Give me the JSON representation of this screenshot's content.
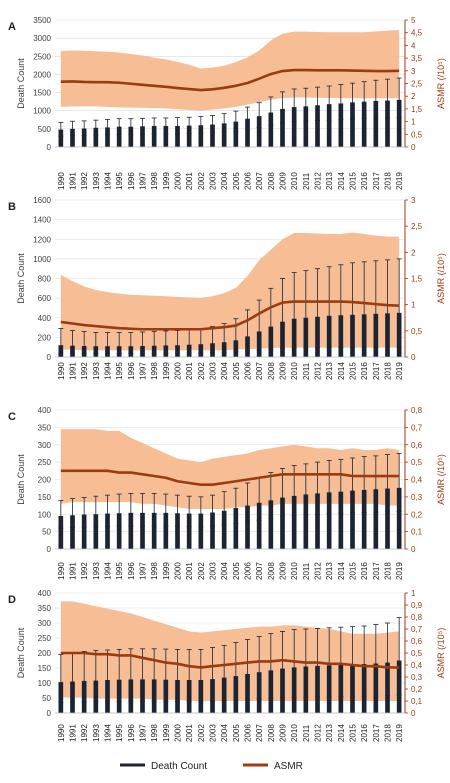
{
  "legend": {
    "death_count": "Death Count",
    "asmr": "ASMR",
    "death_color": "#1c2433",
    "asmr_color": "#9a3b12"
  },
  "colors": {
    "band": "#f6b88c",
    "bar": "#1c2433",
    "asmr_line": "#9a3b12",
    "right_axis": "#9a3b12",
    "grid": "#d9d9d9"
  },
  "chart_data": [
    {
      "panel_label": "A",
      "type": "bar",
      "x": [
        "1990",
        "1991",
        "1992",
        "1993",
        "1994",
        "1995",
        "1996",
        "1997",
        "1998",
        "1999",
        "2000",
        "2001",
        "2002",
        "2003",
        "2004",
        "2005",
        "2006",
        "2007",
        "2008",
        "2009",
        "2010",
        "2011",
        "2012",
        "2013",
        "2014",
        "2015",
        "2016",
        "2017",
        "2018",
        "2019"
      ],
      "ylabel": "Death Count",
      "ylabel_right": "ASMR (/10⁵)",
      "ylim": [
        0,
        3500
      ],
      "yticks": [
        "0",
        "500",
        "1000",
        "1500",
        "2000",
        "2500",
        "3000",
        "3500"
      ],
      "ylim_right": [
        0,
        5
      ],
      "yticks_right": [
        "0",
        "0,5",
        "1",
        "1,5",
        "2",
        "2,5",
        "3",
        "3,5",
        "4",
        "4,5",
        "5"
      ],
      "death_count": [
        480,
        500,
        510,
        530,
        540,
        560,
        560,
        570,
        580,
        580,
        580,
        590,
        600,
        620,
        650,
        700,
        780,
        850,
        950,
        1050,
        1100,
        1120,
        1150,
        1180,
        1200,
        1230,
        1250,
        1270,
        1280,
        1300
      ],
      "death_upper": [
        680,
        710,
        720,
        740,
        760,
        780,
        780,
        790,
        800,
        800,
        810,
        820,
        840,
        870,
        920,
        990,
        1100,
        1220,
        1380,
        1520,
        1600,
        1620,
        1650,
        1680,
        1720,
        1760,
        1800,
        1840,
        1870,
        1900
      ],
      "death_lower": [
        300,
        310,
        320,
        330,
        340,
        350,
        350,
        360,
        360,
        360,
        370,
        370,
        380,
        390,
        410,
        440,
        490,
        540,
        600,
        660,
        700,
        710,
        730,
        740,
        750,
        770,
        780,
        790,
        800,
        810
      ],
      "asmr": [
        2.57,
        2.58,
        2.56,
        2.55,
        2.55,
        2.53,
        2.49,
        2.45,
        2.41,
        2.37,
        2.32,
        2.28,
        2.24,
        2.27,
        2.33,
        2.41,
        2.52,
        2.69,
        2.87,
        2.99,
        3.03,
        3.03,
        3.02,
        3.02,
        3.02,
        3.01,
        3.0,
        2.99,
        2.99,
        3.0
      ],
      "asmr_upper": [
        3.78,
        3.8,
        3.79,
        3.77,
        3.75,
        3.72,
        3.66,
        3.6,
        3.52,
        3.45,
        3.35,
        3.24,
        3.09,
        3.13,
        3.2,
        3.34,
        3.53,
        3.8,
        4.2,
        4.46,
        4.54,
        4.54,
        4.53,
        4.52,
        4.52,
        4.52,
        4.52,
        4.55,
        4.58,
        4.6
      ],
      "asmr_lower": [
        1.58,
        1.6,
        1.6,
        1.6,
        1.58,
        1.56,
        1.55,
        1.54,
        1.53,
        1.52,
        1.48,
        1.46,
        1.43,
        1.47,
        1.52,
        1.58,
        1.67,
        1.76,
        1.86,
        1.93,
        1.95,
        1.95,
        1.94,
        1.93,
        1.92,
        1.92,
        1.92,
        1.92,
        1.92,
        1.92
      ]
    },
    {
      "panel_label": "B",
      "type": "bar",
      "x": [
        "1990",
        "1991",
        "1992",
        "1993",
        "1994",
        "1995",
        "1996",
        "1997",
        "1998",
        "1999",
        "2000",
        "2001",
        "2002",
        "2003",
        "2004",
        "2005",
        "2006",
        "2007",
        "2008",
        "2009",
        "2010",
        "2011",
        "2012",
        "2013",
        "2014",
        "2015",
        "2016",
        "2017",
        "2018",
        "2019"
      ],
      "ylabel": "Death Count",
      "ylabel_right": "ASMR (/10⁵)",
      "ylim": [
        0,
        1600
      ],
      "yticks": [
        "0",
        "200",
        "400",
        "600",
        "800",
        "1000",
        "1200",
        "1400",
        "1600"
      ],
      "ylim_right": [
        0,
        3
      ],
      "yticks_right": [
        "0",
        "0,5",
        "1",
        "1,5",
        "2",
        "2,5",
        "3"
      ],
      "death_count": [
        120,
        115,
        112,
        110,
        110,
        110,
        110,
        112,
        115,
        118,
        120,
        125,
        130,
        140,
        150,
        170,
        210,
        260,
        310,
        360,
        390,
        400,
        410,
        420,
        425,
        430,
        435,
        440,
        445,
        450
      ],
      "death_upper": [
        290,
        270,
        260,
        250,
        250,
        250,
        250,
        255,
        260,
        265,
        270,
        280,
        290,
        310,
        340,
        390,
        480,
        580,
        700,
        800,
        860,
        880,
        900,
        920,
        940,
        960,
        970,
        980,
        990,
        1000
      ],
      "death_lower": [
        40,
        40,
        38,
        37,
        37,
        37,
        37,
        38,
        38,
        39,
        40,
        41,
        42,
        45,
        48,
        52,
        60,
        70,
        80,
        90,
        95,
        96,
        97,
        98,
        99,
        100,
        100,
        100,
        100,
        100
      ],
      "asmr": [
        0.67,
        0.64,
        0.61,
        0.59,
        0.57,
        0.55,
        0.54,
        0.53,
        0.53,
        0.53,
        0.53,
        0.53,
        0.53,
        0.55,
        0.57,
        0.6,
        0.7,
        0.83,
        0.95,
        1.04,
        1.06,
        1.06,
        1.06,
        1.06,
        1.06,
        1.05,
        1.03,
        1.01,
        0.99,
        0.98
      ],
      "asmr_upper": [
        1.57,
        1.45,
        1.35,
        1.28,
        1.24,
        1.21,
        1.19,
        1.18,
        1.17,
        1.16,
        1.15,
        1.14,
        1.13,
        1.16,
        1.22,
        1.32,
        1.55,
        1.85,
        2.05,
        2.25,
        2.37,
        2.37,
        2.36,
        2.35,
        2.35,
        2.38,
        2.35,
        2.32,
        2.3,
        2.3
      ],
      "asmr_lower": [
        0.14,
        0.14,
        0.13,
        0.13,
        0.13,
        0.13,
        0.13,
        0.13,
        0.13,
        0.13,
        0.13,
        0.13,
        0.13,
        0.13,
        0.13,
        0.14,
        0.15,
        0.16,
        0.17,
        0.18,
        0.18,
        0.18,
        0.18,
        0.18,
        0.18,
        0.18,
        0.18,
        0.18,
        0.18,
        0.18
      ]
    },
    {
      "panel_label": "C",
      "type": "bar",
      "x": [
        "1990",
        "1991",
        "1992",
        "1993",
        "1994",
        "1995",
        "1996",
        "1997",
        "1998",
        "1999",
        "2000",
        "2001",
        "2002",
        "2003",
        "2004",
        "2005",
        "2006",
        "2007",
        "2008",
        "2009",
        "2010",
        "2011",
        "2012",
        "2013",
        "2014",
        "2015",
        "2016",
        "2017",
        "2018",
        "2019"
      ],
      "ylabel": "Death Count",
      "ylabel_right": "ASMR (/10⁵)",
      "ylim": [
        0,
        400
      ],
      "yticks": [
        "0",
        "50",
        "100",
        "150",
        "200",
        "250",
        "300",
        "350",
        "400"
      ],
      "ylim_right": [
        0,
        0.8
      ],
      "yticks_right": [
        "0",
        "0,1",
        "0,2",
        "0,3",
        "0,4",
        "0,5",
        "0,6",
        "0,7",
        "0,8"
      ],
      "death_count": [
        95,
        97,
        99,
        100,
        102,
        103,
        104,
        104,
        104,
        104,
        103,
        102,
        102,
        105,
        110,
        118,
        125,
        133,
        140,
        148,
        153,
        157,
        160,
        163,
        165,
        168,
        170,
        172,
        174,
        176
      ],
      "death_upper": [
        140,
        145,
        148,
        152,
        155,
        158,
        160,
        160,
        160,
        158,
        155,
        152,
        150,
        155,
        165,
        175,
        190,
        205,
        220,
        232,
        240,
        245,
        250,
        255,
        258,
        262,
        266,
        268,
        272,
        275
      ],
      "death_lower": [
        60,
        62,
        63,
        64,
        65,
        66,
        66,
        66,
        66,
        66,
        65,
        64,
        64,
        66,
        69,
        73,
        78,
        83,
        88,
        93,
        96,
        98,
        100,
        102,
        103,
        104,
        105,
        106,
        107,
        108
      ],
      "asmr": [
        0.45,
        0.45,
        0.45,
        0.45,
        0.45,
        0.44,
        0.44,
        0.43,
        0.42,
        0.41,
        0.39,
        0.38,
        0.37,
        0.37,
        0.38,
        0.39,
        0.4,
        0.41,
        0.42,
        0.43,
        0.43,
        0.43,
        0.43,
        0.43,
        0.43,
        0.42,
        0.42,
        0.42,
        0.42,
        0.42
      ],
      "asmr_upper": [
        0.69,
        0.69,
        0.69,
        0.69,
        0.68,
        0.68,
        0.64,
        0.61,
        0.58,
        0.55,
        0.52,
        0.51,
        0.5,
        0.52,
        0.53,
        0.54,
        0.55,
        0.57,
        0.58,
        0.59,
        0.6,
        0.59,
        0.58,
        0.58,
        0.57,
        0.58,
        0.57,
        0.57,
        0.58,
        0.57
      ],
      "asmr_lower": [
        0.26,
        0.27,
        0.27,
        0.27,
        0.27,
        0.27,
        0.27,
        0.26,
        0.26,
        0.25,
        0.24,
        0.23,
        0.23,
        0.23,
        0.23,
        0.24,
        0.24,
        0.25,
        0.25,
        0.26,
        0.26,
        0.26,
        0.26,
        0.26,
        0.26,
        0.26,
        0.26,
        0.26,
        0.25,
        0.25
      ]
    },
    {
      "panel_label": "D",
      "type": "bar",
      "x": [
        "1990",
        "1991",
        "1992",
        "1993",
        "1994",
        "1995",
        "1996",
        "1997",
        "1998",
        "1999",
        "2000",
        "2001",
        "2002",
        "2003",
        "2004",
        "2005",
        "2006",
        "2007",
        "2008",
        "2009",
        "2010",
        "2011",
        "2012",
        "2013",
        "2014",
        "2015",
        "2016",
        "2017",
        "2018",
        "2019"
      ],
      "ylabel": "Death Count",
      "ylabel_right": "ASMR (/10⁵)",
      "ylim": [
        0,
        400
      ],
      "yticks": [
        "0",
        "50",
        "100",
        "150",
        "200",
        "250",
        "300",
        "350",
        "400"
      ],
      "ylim_right": [
        0,
        1
      ],
      "yticks_right": [
        "0",
        "0,1",
        "0,2",
        "0,3",
        "0,4",
        "0,5",
        "0,6",
        "0,7",
        "0,8",
        "0,9",
        "1"
      ],
      "death_count": [
        103,
        105,
        107,
        108,
        110,
        111,
        112,
        112,
        112,
        111,
        110,
        110,
        110,
        113,
        118,
        123,
        130,
        136,
        142,
        148,
        152,
        155,
        157,
        159,
        160,
        162,
        163,
        165,
        168,
        175
      ],
      "death_upper": [
        195,
        200,
        205,
        208,
        210,
        212,
        214,
        214,
        214,
        213,
        212,
        212,
        212,
        218,
        225,
        235,
        245,
        255,
        265,
        272,
        278,
        280,
        282,
        284,
        286,
        288,
        290,
        295,
        300,
        318
      ],
      "death_lower": [
        35,
        36,
        37,
        38,
        38,
        39,
        39,
        39,
        39,
        38,
        38,
        38,
        38,
        39,
        41,
        43,
        45,
        47,
        49,
        51,
        52,
        53,
        54,
        55,
        55,
        56,
        56,
        57,
        58,
        60
      ],
      "asmr": [
        0.5,
        0.5,
        0.5,
        0.49,
        0.49,
        0.48,
        0.48,
        0.46,
        0.44,
        0.42,
        0.41,
        0.39,
        0.38,
        0.39,
        0.4,
        0.41,
        0.42,
        0.43,
        0.43,
        0.44,
        0.43,
        0.42,
        0.42,
        0.41,
        0.41,
        0.4,
        0.39,
        0.39,
        0.38,
        0.38
      ],
      "asmr_upper": [
        0.93,
        0.93,
        0.91,
        0.89,
        0.87,
        0.85,
        0.83,
        0.8,
        0.77,
        0.74,
        0.71,
        0.68,
        0.67,
        0.68,
        0.69,
        0.7,
        0.71,
        0.72,
        0.72,
        0.73,
        0.73,
        0.72,
        0.71,
        0.7,
        0.68,
        0.66,
        0.66,
        0.66,
        0.67,
        0.68
      ],
      "asmr_lower": [
        0.13,
        0.13,
        0.13,
        0.12,
        0.12,
        0.12,
        0.12,
        0.12,
        0.11,
        0.11,
        0.11,
        0.1,
        0.1,
        0.1,
        0.1,
        0.1,
        0.1,
        0.1,
        0.1,
        0.1,
        0.1,
        0.1,
        0.1,
        0.1,
        0.1,
        0.1,
        0.1,
        0.1,
        0.1,
        0.1
      ]
    }
  ]
}
